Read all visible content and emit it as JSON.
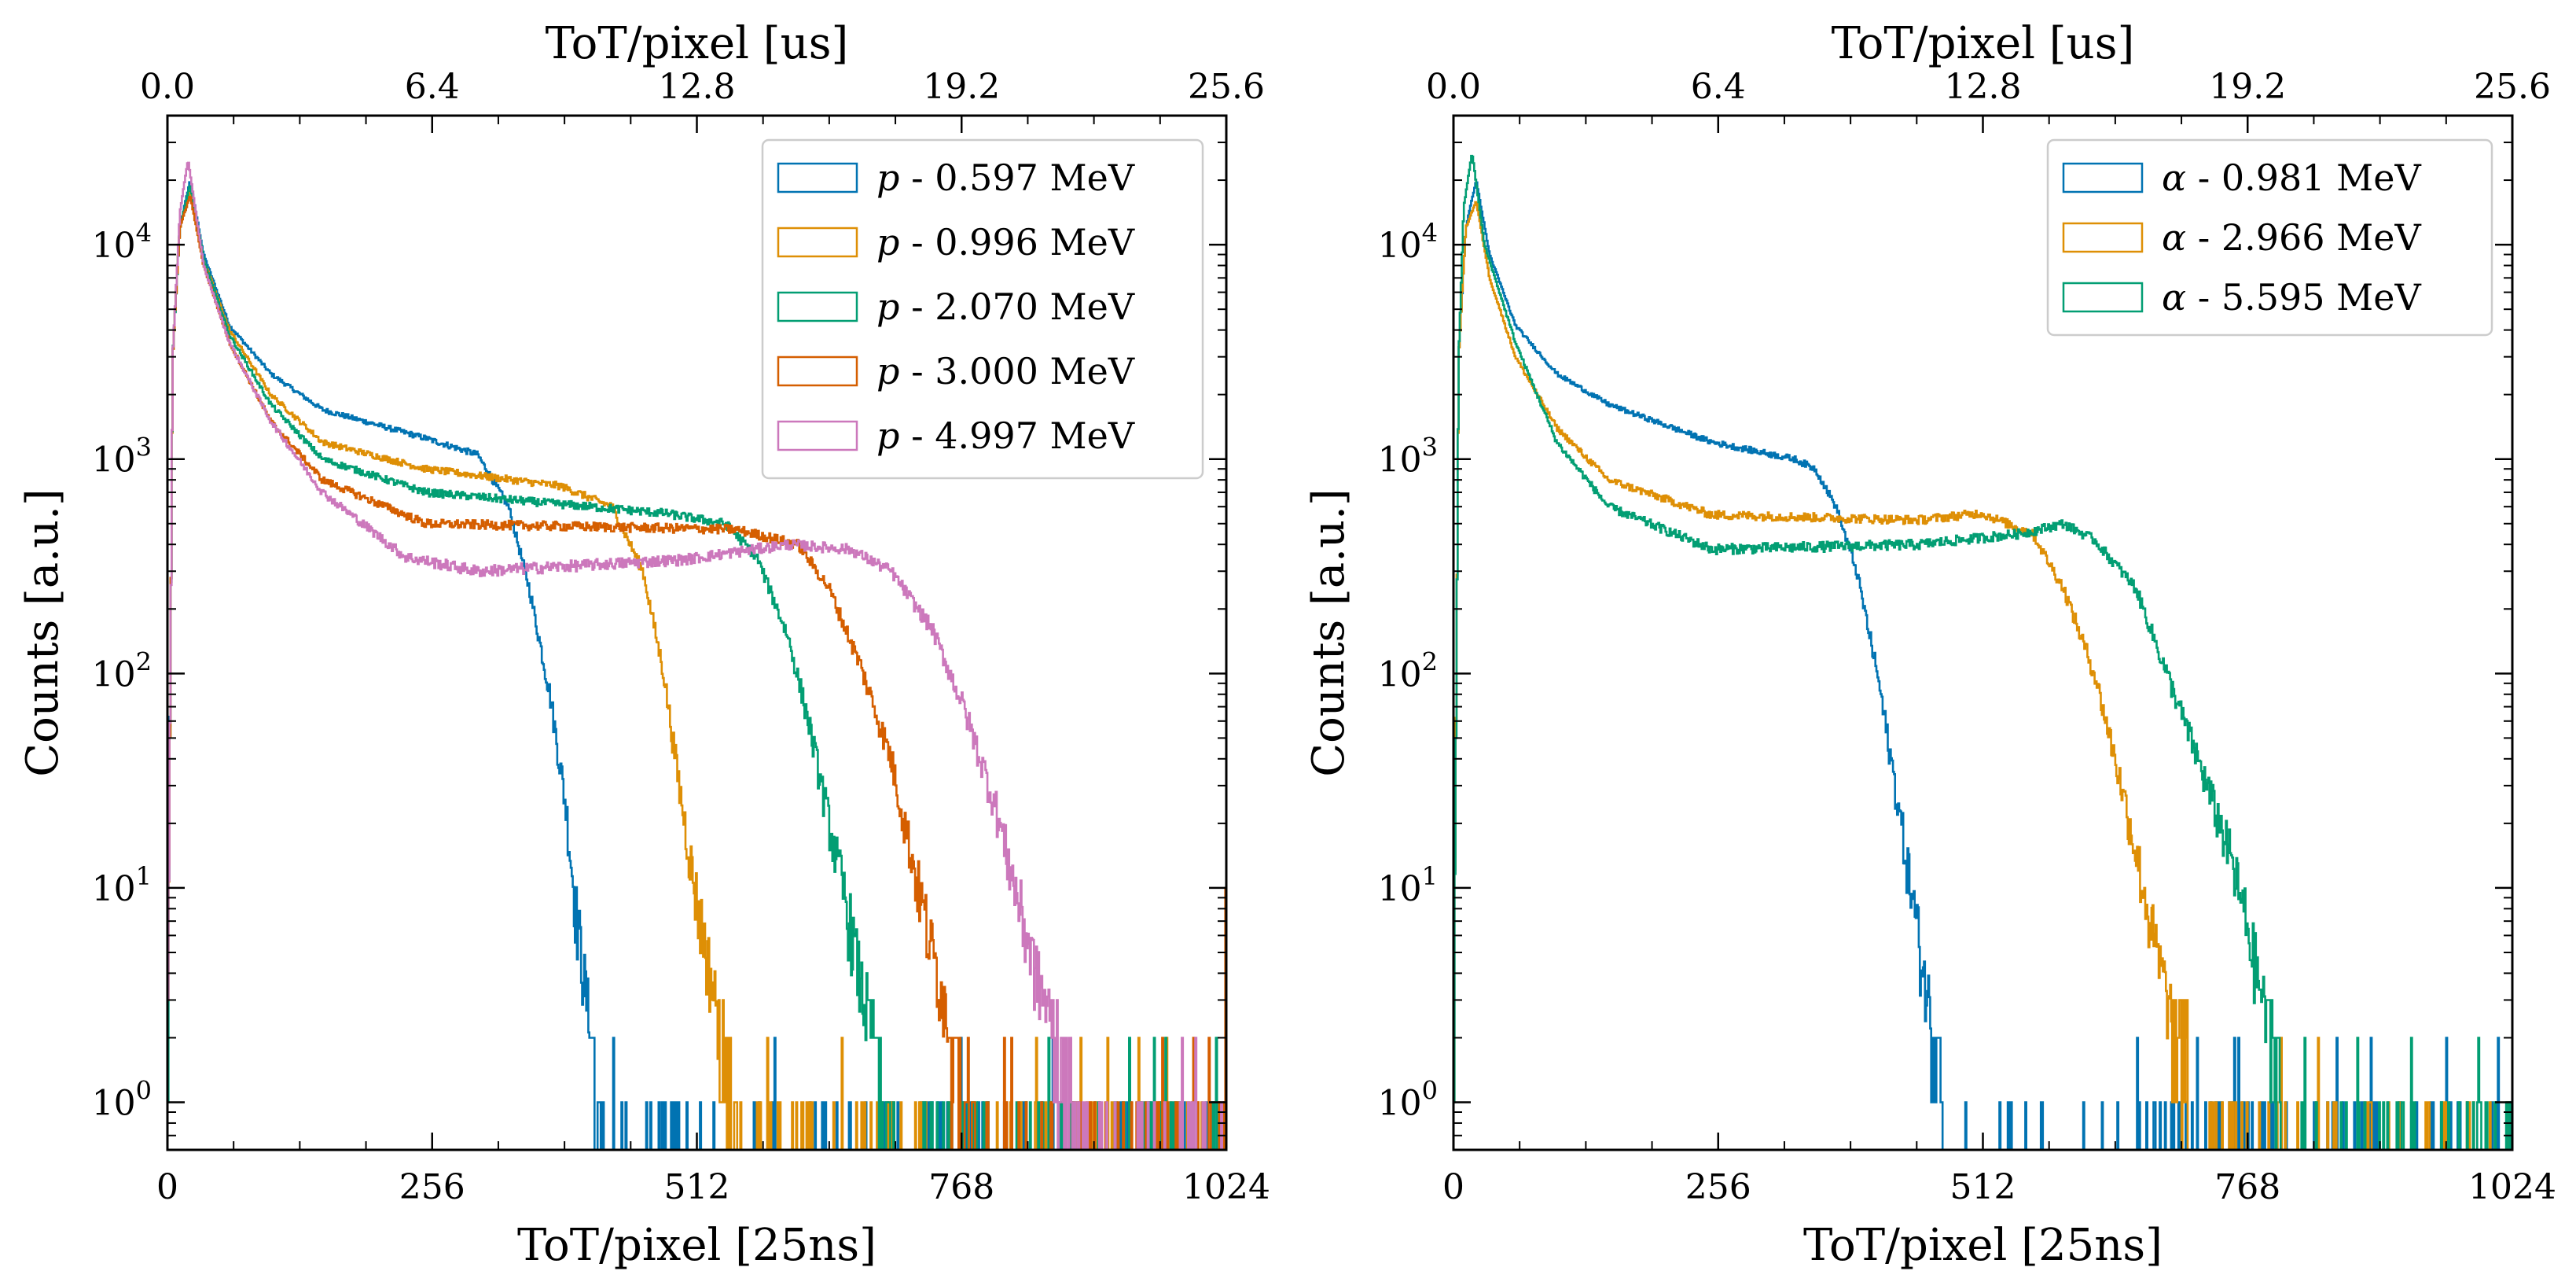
{
  "figure": {
    "description_free": true
  },
  "chart_data": [
    {
      "type": "line",
      "style": "step-histogram",
      "xlabel": "ToT/pixel [25ns]",
      "xlabel_top": "ToT/pixel [us]",
      "ylabel": "Counts [a.u.]",
      "xlim": [
        0,
        1024
      ],
      "ylim": [
        0.6,
        40000
      ],
      "yscale": "log",
      "x_ticks": [
        "0",
        "256",
        "512",
        "768",
        "1024"
      ],
      "x_tick_values": [
        0,
        256,
        512,
        768,
        1024
      ],
      "top_ticks": [
        "0.0",
        "6.4",
        "12.8",
        "19.2",
        "25.6"
      ],
      "y_tick_exponents": [
        "0",
        "1",
        "2",
        "3",
        "4"
      ],
      "y_tick_values": [
        1,
        10,
        100,
        1000,
        10000
      ],
      "legend_position": "top-right",
      "series": [
        {
          "particle": "p",
          "label": " - 0.597 MeV",
          "color": "#0173b2",
          "anchors": [
            [
              0,
              1
            ],
            [
              5,
              3000
            ],
            [
              12,
              12000
            ],
            [
              22,
              20000
            ],
            [
              35,
              9000
            ],
            [
              60,
              4200
            ],
            [
              100,
              2500
            ],
            [
              150,
              1700
            ],
            [
              250,
              1250
            ],
            [
              300,
              1050
            ],
            [
              330,
              600
            ],
            [
              350,
              250
            ],
            [
              370,
              80
            ],
            [
              385,
              25
            ],
            [
              395,
              8
            ],
            [
              410,
              2
            ],
            [
              420,
              1
            ],
            [
              425,
              0
            ]
          ]
        },
        {
          "particle": "p",
          "label": " - 0.996 MeV",
          "color": "#de8f05",
          "anchors": [
            [
              0,
              1
            ],
            [
              5,
              3000
            ],
            [
              12,
              12000
            ],
            [
              22,
              18000
            ],
            [
              35,
              8500
            ],
            [
              60,
              4000
            ],
            [
              100,
              2000
            ],
            [
              150,
              1200
            ],
            [
              250,
              900
            ],
            [
              380,
              750
            ],
            [
              430,
              600
            ],
            [
              460,
              300
            ],
            [
              480,
              100
            ],
            [
              495,
              30
            ],
            [
              510,
              10
            ],
            [
              530,
              3
            ],
            [
              550,
              1
            ],
            [
              570,
              0
            ]
          ]
        },
        {
          "particle": "p",
          "label": " - 2.070 MeV",
          "color": "#029e73",
          "anchors": [
            [
              0,
              1
            ],
            [
              5,
              3000
            ],
            [
              12,
              12000
            ],
            [
              22,
              19000
            ],
            [
              35,
              8500
            ],
            [
              60,
              3800
            ],
            [
              100,
              1800
            ],
            [
              150,
              1000
            ],
            [
              250,
              700
            ],
            [
              480,
              560
            ],
            [
              540,
              500
            ],
            [
              570,
              350
            ],
            [
              600,
              150
            ],
            [
              620,
              60
            ],
            [
              640,
              20
            ],
            [
              660,
              7
            ],
            [
              680,
              2
            ],
            [
              700,
              1
            ],
            [
              720,
              0
            ]
          ]
        },
        {
          "particle": "p",
          "label": " - 3.000 MeV",
          "color": "#d55e00",
          "anchors": [
            [
              0,
              1
            ],
            [
              5,
              3000
            ],
            [
              12,
              12000
            ],
            [
              22,
              17000
            ],
            [
              35,
              8000
            ],
            [
              60,
              3500
            ],
            [
              100,
              1500
            ],
            [
              150,
              800
            ],
            [
              250,
              500
            ],
            [
              550,
              470
            ],
            [
              610,
              400
            ],
            [
              640,
              250
            ],
            [
              670,
              110
            ],
            [
              700,
              40
            ],
            [
              720,
              14
            ],
            [
              740,
              5
            ],
            [
              760,
              2
            ],
            [
              775,
              1
            ],
            [
              790,
              0
            ]
          ]
        },
        {
          "particle": "p",
          "label": " - 4.997 MeV",
          "color": "#cc78bc",
          "anchors": [
            [
              0,
              1
            ],
            [
              5,
              3000
            ],
            [
              12,
              14000
            ],
            [
              20,
              25000
            ],
            [
              35,
              8000
            ],
            [
              60,
              3500
            ],
            [
              100,
              1500
            ],
            [
              150,
              700
            ],
            [
              230,
              350
            ],
            [
              300,
              300
            ],
            [
              500,
              340
            ],
            [
              600,
              400
            ],
            [
              660,
              380
            ],
            [
              700,
              300
            ],
            [
              740,
              160
            ],
            [
              770,
              70
            ],
            [
              800,
              25
            ],
            [
              820,
              10
            ],
            [
              840,
              4
            ],
            [
              860,
              2
            ],
            [
              880,
              1
            ],
            [
              900,
              0
            ]
          ]
        }
      ]
    },
    {
      "type": "line",
      "style": "step-histogram",
      "xlabel": "ToT/pixel [25ns]",
      "xlabel_top": "ToT/pixel [us]",
      "ylabel": "Counts [a.u.]",
      "xlim": [
        0,
        1024
      ],
      "ylim": [
        0.6,
        40000
      ],
      "yscale": "log",
      "x_ticks": [
        "0",
        "256",
        "512",
        "768",
        "1024"
      ],
      "x_tick_values": [
        0,
        256,
        512,
        768,
        1024
      ],
      "top_ticks": [
        "0.0",
        "6.4",
        "12.8",
        "19.2",
        "25.6"
      ],
      "y_tick_exponents": [
        "0",
        "1",
        "2",
        "3",
        "4"
      ],
      "y_tick_values": [
        1,
        10,
        100,
        1000,
        10000
      ],
      "legend_position": "top-right",
      "series": [
        {
          "particle": "α",
          "label": " - 0.981 MeV",
          "color": "#0173b2",
          "anchors": [
            [
              0,
              1
            ],
            [
              5,
              3000
            ],
            [
              12,
              12000
            ],
            [
              22,
              20000
            ],
            [
              35,
              9000
            ],
            [
              60,
              4200
            ],
            [
              100,
              2500
            ],
            [
              150,
              1800
            ],
            [
              250,
              1200
            ],
            [
              330,
              1000
            ],
            [
              350,
              900
            ],
            [
              370,
              600
            ],
            [
              390,
              300
            ],
            [
              410,
              100
            ],
            [
              425,
              35
            ],
            [
              440,
              12
            ],
            [
              455,
              4
            ],
            [
              470,
              1.5
            ],
            [
              480,
              0
            ]
          ]
        },
        {
          "particle": "α",
          "label": " - 2.966 MeV",
          "color": "#de8f05",
          "anchors": [
            [
              0,
              1
            ],
            [
              5,
              3000
            ],
            [
              12,
              12000
            ],
            [
              22,
              16000
            ],
            [
              35,
              7000
            ],
            [
              60,
              3000
            ],
            [
              100,
              1400
            ],
            [
              150,
              800
            ],
            [
              250,
              550
            ],
            [
              450,
              520
            ],
            [
              510,
              560
            ],
            [
              560,
              450
            ],
            [
              590,
              250
            ],
            [
              620,
              100
            ],
            [
              640,
              40
            ],
            [
              660,
              15
            ],
            [
              680,
              5
            ],
            [
              700,
              2
            ],
            [
              720,
              0
            ]
          ]
        },
        {
          "particle": "α",
          "label": " - 5.595 MeV",
          "color": "#029e73",
          "anchors": [
            [
              0,
              1
            ],
            [
              5,
              3000
            ],
            [
              10,
              15000
            ],
            [
              18,
              27000
            ],
            [
              30,
              10000
            ],
            [
              60,
              3500
            ],
            [
              100,
              1200
            ],
            [
              150,
              600
            ],
            [
              250,
              380
            ],
            [
              450,
              400
            ],
            [
              550,
              450
            ],
            [
              590,
              500
            ],
            [
              620,
              420
            ],
            [
              660,
              250
            ],
            [
              690,
              100
            ],
            [
              720,
              40
            ],
            [
              750,
              15
            ],
            [
              770,
              6
            ],
            [
              790,
              2
            ],
            [
              810,
              0
            ]
          ]
        }
      ]
    }
  ]
}
